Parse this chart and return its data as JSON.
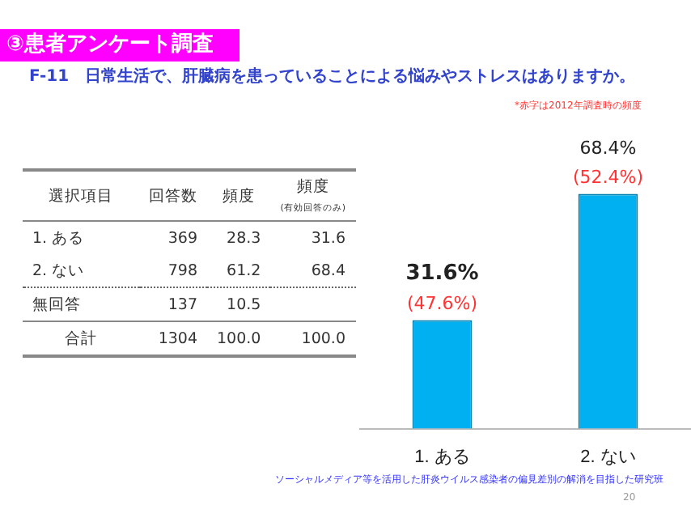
{
  "chart_data": {
    "type": "bar",
    "title": "F-11　日常生活で、肝臓病を患っていることによる悩みやストレスはありますか。",
    "categories": [
      "1. ある",
      "2. ない"
    ],
    "values": [
      31.6,
      68.4
    ],
    "value_labels": [
      "31.6%",
      "68.4%"
    ],
    "color": "#00b0f0",
    "grid": false,
    "legend": false,
    "annotations": [
      "③患者アンケート調査",
      "*赤字は2012年調査時の頻度",
      "ソーシャルメディア等を活用した肝炎ウイルス感染者の偏見差別の解消を目指した研究班",
      "20",
      "(47.6%)",
      "(52.4%)",
      "選択項目\t回答数\t頻度\t頻度\n(有効回答のみ)",
      "1. ある\t369\t28.3\t31.6",
      "2. ない\t798\t61.2\t68.4",
      "無回答\t137\t10.5",
      "合計\t1304\t100.0\t100.0"
    ]
  }
}
